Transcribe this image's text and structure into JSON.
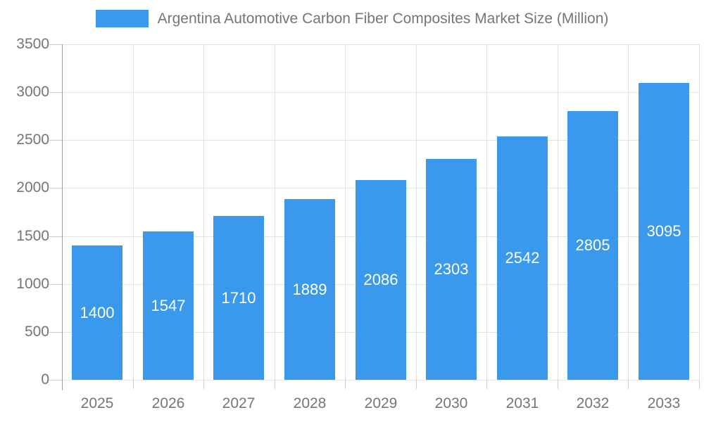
{
  "chart_data": {
    "type": "bar",
    "title": "Argentina Automotive Carbon Fiber Composites Market Size (Million)",
    "categories": [
      "2025",
      "2026",
      "2027",
      "2028",
      "2029",
      "2030",
      "2031",
      "2032",
      "2033"
    ],
    "values": [
      1400,
      1547,
      1710,
      1889,
      2086,
      2303,
      2542,
      2805,
      3095
    ],
    "xlabel": "",
    "ylabel": "",
    "ylim": [
      0,
      3500
    ],
    "ytick_step": 500,
    "ytick_labels": [
      "0",
      "500",
      "1000",
      "1500",
      "2000",
      "2500",
      "3000",
      "3500"
    ],
    "grid": true,
    "legend_position": "top-center",
    "value_labels": "inside-center",
    "colors": {
      "bar": "#3B99EC",
      "grid_line": "#E3E3E3",
      "axis_line": "#9E9E9E",
      "tick_line": "#CCCCCC",
      "axis_text": "#757575",
      "legend_text": "#757575",
      "value_label_text": "#FFFFFF",
      "background": "#FFFFFF"
    }
  }
}
